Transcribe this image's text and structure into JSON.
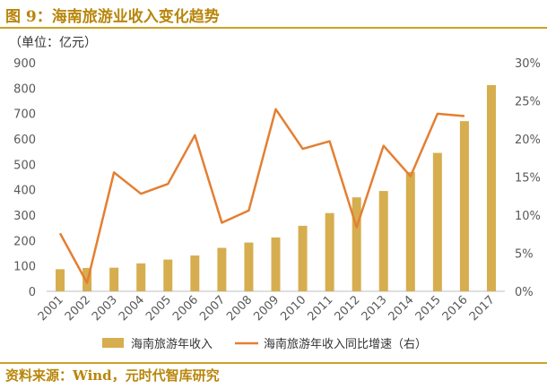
{
  "title": "图 9：海南旅游业收入变化趋势",
  "source": "资料来源：Wind，元时代智库研究",
  "colors": {
    "bar": "#D6AE4F",
    "line": "#E47F32",
    "title": "#B8860B",
    "rule": "#C9A227",
    "axis": "#595959"
  },
  "chart_data": {
    "type": "bar",
    "unit_label": "（单位：亿元）",
    "categories": [
      "2001",
      "2002",
      "2003",
      "2004",
      "2005",
      "2006",
      "2007",
      "2008",
      "2009",
      "2010",
      "2011",
      "2012",
      "2013",
      "2014",
      "2015",
      "2016",
      "2017"
    ],
    "y_left": {
      "min": 0,
      "max": 900,
      "step": 100,
      "ticks": [
        "0",
        "100",
        "200",
        "300",
        "400",
        "500",
        "600",
        "700",
        "800",
        "900"
      ]
    },
    "y_right": {
      "min": 0,
      "max": 30,
      "step": 5,
      "ticks": [
        "0%",
        "5%",
        "10%",
        "15%",
        "20%",
        "25%",
        "30%"
      ]
    },
    "grid": false,
    "legend_position": "bottom",
    "series": [
      {
        "name": "海南旅游年收入",
        "type": "bar",
        "axis": "left",
        "values": [
          87,
          92,
          93,
          110,
          125,
          141,
          171,
          192,
          212,
          258,
          308,
          370,
          395,
          470,
          545,
          670,
          812
        ]
      },
      {
        "name": "海南旅游年收入同比增速（右）",
        "type": "line",
        "axis": "right",
        "values": [
          7.6,
          1.1,
          15.6,
          12.8,
          14.1,
          20.5,
          9.0,
          10.6,
          23.9,
          18.7,
          19.7,
          8.4,
          19.1,
          15.1,
          23.3,
          23.0,
          null
        ]
      }
    ]
  }
}
